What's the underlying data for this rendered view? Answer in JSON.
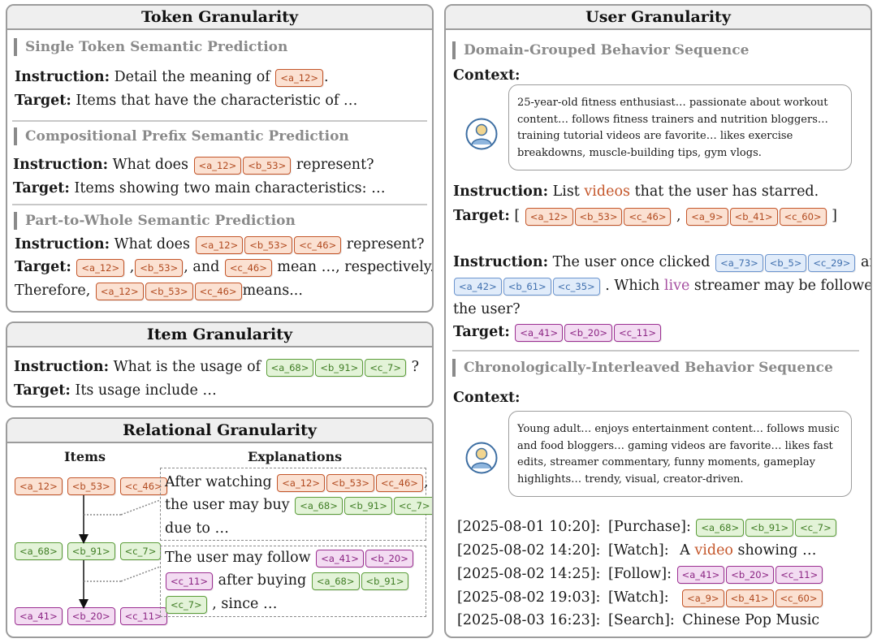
{
  "token": {
    "title": "Token Granularity",
    "s1": {
      "heading": "Single Token Semantic Prediction",
      "instr_label": "Instruction:",
      "instr_text": "Detail the meaning of",
      "instr_token": "<a_12>",
      "instr_end": ".",
      "target_label": "Target:",
      "target_text": "Items that have the characteristic of …"
    },
    "s2": {
      "heading": "Compositional Prefix Semantic Prediction",
      "instr_label": "Instruction:",
      "instr_text": "What does",
      "tokens": [
        "<a_12>",
        "<b_53>"
      ],
      "instr_end": "represent?",
      "target_label": "Target:",
      "target_text": "Items showing two main characteristics: …"
    },
    "s3": {
      "heading": "Part-to-Whole Semantic Prediction",
      "instr_label": "Instruction:",
      "instr_text": "What does",
      "tokens": [
        "<a_12>",
        "<b_53>",
        "<c_46>"
      ],
      "instr_end": "represent?",
      "target_label": "Target:",
      "t_tok1": "<a_12>",
      "t_comma1": ",",
      "t_tok2": "<b_53>",
      "t_and": ", and",
      "t_tok3": "<c_46>",
      "t_end": "mean …, respectively.",
      "therefore": "Therefore,",
      "th_tokens": [
        "<a_12>",
        "<b_53>",
        "<c_46>"
      ],
      "th_end": "means..."
    }
  },
  "item": {
    "title": "Item Granularity",
    "instr_label": "Instruction:",
    "instr_text": "What is the usage of",
    "tokens": [
      "<a_68>",
      "<b_91>",
      "<c_7>"
    ],
    "instr_end": "?",
    "target_label": "Target:",
    "target_text": "Its usage include …"
  },
  "relational": {
    "title": "Relational Granularity",
    "items_head": "Items",
    "expl_head": "Explanations",
    "row1": [
      "<a_12>",
      "<b_53>",
      "<c_46>"
    ],
    "row2": [
      "<a_68>",
      "<b_91>",
      "<c_7>"
    ],
    "row3": [
      "<a_41>",
      "<b_20>",
      "<c_11>"
    ],
    "e1": {
      "t1": "After watching",
      "tokens_a": [
        "<a_12>",
        "<b_53>",
        "<c_46>"
      ],
      "comma": ",",
      "t2": "the user may buy",
      "tokens_b": [
        "<a_68>",
        "<b_91>",
        "<c_7>"
      ],
      "t3": "due to …"
    },
    "e2": {
      "t1": "The user may follow",
      "tokens_a": [
        "<a_41>",
        "<b_20>"
      ],
      "tok_c": "<c_11>",
      "t2": "after buying",
      "tokens_b": [
        "<a_68>",
        "<b_91>"
      ],
      "tok_d": "<c_7>",
      "t3": ", since …"
    }
  },
  "user": {
    "title": "User Granularity",
    "d": {
      "heading": "Domain-Grouped Behavior Sequence",
      "context_label": "Context:",
      "context_lines": [
        "25-year-old fitness enthusiast… passionate about workout",
        "content… follows fitness trainers and nutrition bloggers…",
        "training tutorial videos are favorite… likes exercise",
        "breakdowns, muscle-building tips, gym vlogs."
      ],
      "i1_label": "Instruction:",
      "i1_a": "List",
      "i1_word": "videos",
      "i1_b": "that the user has starred.",
      "t1_label": "Target:",
      "t1_open": "[",
      "t1_tokens_a": [
        "<a_12>",
        "<b_53>",
        "<c_46>"
      ],
      "t1_comma": ",",
      "t1_tokens_b": [
        "<a_9>",
        "<b_41>",
        "<c_60>"
      ],
      "t1_close": "]",
      "i2_label": "Instruction:",
      "i2_a": "The user once clicked",
      "i2_tokens_a": [
        "<a_73>",
        "<b_5>",
        "<c_29>"
      ],
      "i2_and": "and",
      "i2_tokens_b": [
        "<a_42>",
        "<b_61>",
        "<c_35>"
      ],
      "i2_b": ". Which",
      "i2_word": "live",
      "i2_c": "streamer may be followed by",
      "i2_d": "the user?",
      "t2_label": "Target:",
      "t2_tokens": [
        "<a_41>",
        "<b_20>",
        "<c_11>"
      ]
    },
    "c": {
      "heading": "Chronologically-Interleaved Behavior Sequence",
      "context_label": "Context:",
      "context_lines": [
        "Young adult… enjoys entertainment content… follows music",
        "and food bloggers… gaming videos are favorite… likes fast",
        "edits, streamer commentary, funny moments, gameplay",
        "highlights… trendy, visual, creator-driven."
      ],
      "events": [
        {
          "time": "[2025-08-01 10:20]:",
          "action": "[Purchase]:",
          "tokens": [
            "<a_68>",
            "<b_91>",
            "<c_7>"
          ]
        },
        {
          "time": "[2025-08-02 14:20]:",
          "action": "[Watch]:",
          "text_a": "A",
          "word": "video",
          "text_b": "showing …"
        },
        {
          "time": "[2025-08-02 14:25]:",
          "action": "[Follow]:",
          "tokens": [
            "<a_41>",
            "<b_20>",
            "<c_11>"
          ]
        },
        {
          "time": "[2025-08-02 19:03]:",
          "action": "[Watch]:",
          "tokens": [
            "<a_9>",
            "<b_41>",
            "<c_60>"
          ]
        },
        {
          "time": "[2025-08-03 16:23]:",
          "action": "[Search]:",
          "text": "Chinese Pop Music"
        }
      ]
    }
  },
  "colors": {
    "semantic_token_orange": "#c4562a",
    "item_token_green": "#5c9e3a",
    "user_token_purple": "#9c2f92",
    "clicked_token_blue": "#6c95cf",
    "section_heading_gray": "#8a8a8a"
  },
  "icons": {
    "user_avatar": "user-avatar-icon",
    "arrow": "arrow-down-icon"
  }
}
